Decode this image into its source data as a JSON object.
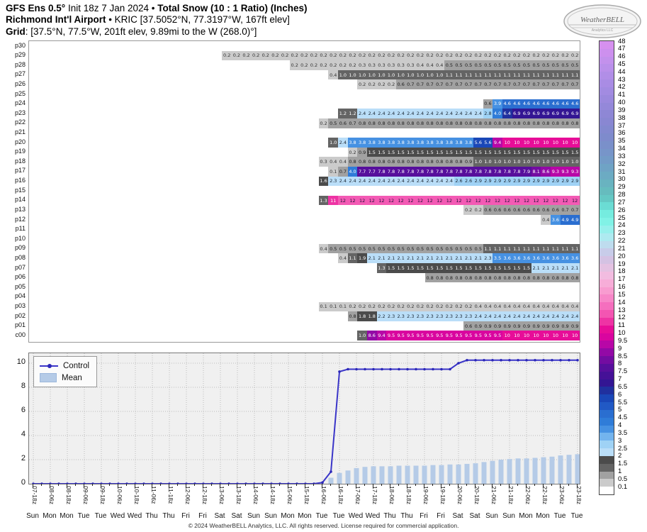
{
  "header": {
    "l1a": "GFS Ens 0.5° ",
    "l1b": "Init 18z 7 Jan 2024 • ",
    "l1c": "Total Snow (10 : 1 Ratio) (Inches)",
    "l2a": "Richmond Int'l Airport",
    "l2b": " • KRIC [37.5052°N, 77.3197°W, 167ft elev]",
    "l3a": "Grid",
    "l3b": ": [37.5°N, 77.5°W, 201ft elev, 9.89mi to the W (268.0)°]"
  },
  "logo": {
    "name": "WeatherBELL",
    "sub": "Analytics LLC"
  },
  "footer": "© 2024 WeatherBELL Analytics, LLC. All rights reserved. License required for commercial application.",
  "colors": {
    "control_line": "#3a35c8",
    "control_dot": "#2c28b8",
    "mean_bar": "#b5cbe7",
    "chart_bg": "#f0f0f0",
    "grid_dots": "#bbbbbb"
  },
  "cell_colormap": [
    {
      "max": 0.5,
      "bg": "#cbcbcb",
      "fg": "#333333"
    },
    {
      "max": 1,
      "bg": "#a1a1a1",
      "fg": "#1c1c1c"
    },
    {
      "max": 1.5,
      "bg": "#646464",
      "fg": "#ffffff"
    },
    {
      "max": 2,
      "bg": "#4b4b4b",
      "fg": "#ffffff"
    },
    {
      "max": 2.5,
      "bg": "#badef8",
      "fg": "#1c2733"
    },
    {
      "max": 3,
      "bg": "#9fd2f5",
      "fg": "#1c2733"
    },
    {
      "max": 3.5,
      "bg": "#73b4ee",
      "fg": "#101622"
    },
    {
      "max": 4,
      "bg": "#4691e2",
      "fg": "#ffffff"
    },
    {
      "max": 4.5,
      "bg": "#2f7cd8",
      "fg": "#ffffff"
    },
    {
      "max": 5,
      "bg": "#2a6ed0",
      "fg": "#ffffff"
    },
    {
      "max": 5.5,
      "bg": "#2159c5",
      "fg": "#ffffff"
    },
    {
      "max": 6,
      "bg": "#1a47b7",
      "fg": "#ffffff"
    },
    {
      "max": 6.5,
      "bg": "#20309e",
      "fg": "#ffffff"
    },
    {
      "max": 7,
      "bg": "#331593",
      "fg": "#ffffff"
    },
    {
      "max": 7.5,
      "bg": "#451197",
      "fg": "#ffffff"
    },
    {
      "max": 8,
      "bg": "#570f9c",
      "fg": "#ffffff"
    },
    {
      "max": 8.5,
      "bg": "#730ca1",
      "fg": "#ffffff"
    },
    {
      "max": 9,
      "bg": "#9309a6",
      "fg": "#ffffff"
    },
    {
      "max": 9.5,
      "bg": "#b807a7",
      "fg": "#ffffff"
    },
    {
      "max": 10,
      "bg": "#d9059f",
      "fg": "#ffffff"
    },
    {
      "max": 11,
      "bg": "#e70d98",
      "fg": "#ffffff"
    },
    {
      "max": 12,
      "bg": "#ee33a4",
      "fg": "#ffffff"
    },
    {
      "max": 13,
      "bg": "#f35ab4",
      "fg": "#20123a"
    }
  ],
  "colorbar": {
    "labels": [
      "48",
      "47",
      "46",
      "45",
      "44",
      "43",
      "42",
      "41",
      "40",
      "39",
      "38",
      "37",
      "36",
      "35",
      "34",
      "33",
      "32",
      "31",
      "30",
      "29",
      "28",
      "27",
      "26",
      "25",
      "24",
      "23",
      "22",
      "21",
      "20",
      "19",
      "18",
      "17",
      "16",
      "15",
      "14",
      "13",
      "12",
      "11",
      "10",
      "9.5",
      "9",
      "8.5",
      "8",
      "7.5",
      "7",
      "6.5",
      "6",
      "5.5",
      "5",
      "4.5",
      "4",
      "3.5",
      "3",
      "2.5",
      "2",
      "1.5",
      "1",
      "0.5",
      "0.1"
    ],
    "colors": [
      "#d690ef",
      "#cd90ee",
      "#c391ec",
      "#ba90ea",
      "#b18ee7",
      "#a98ce4",
      "#a28be1",
      "#9b89dd",
      "#9488d9",
      "#8e87d5",
      "#8987d2",
      "#8389cf",
      "#7e8bcc",
      "#7a90ca",
      "#7795c9",
      "#739bc7",
      "#6fa3c5",
      "#6cabc3",
      "#69b3c0",
      "#66bcbe",
      "#65c8c4",
      "#6bdcd4",
      "#75ecdf",
      "#81f2e6",
      "#97f0ec",
      "#aeeaf0",
      "#bedcee",
      "#c8cce9",
      "#d4c2e3",
      "#e4c2e2",
      "#f2bce0",
      "#f7add8",
      "#f89cd0",
      "#f787c8",
      "#f56fbe",
      "#f355b2",
      "#ee33a4",
      "#e70d98",
      "#d9059f",
      "#b807a7",
      "#9309a6",
      "#730ca1",
      "#570f9c",
      "#451197",
      "#331593",
      "#20309e",
      "#1a47b7",
      "#2159c5",
      "#2a6ed0",
      "#2f7cd8",
      "#4691e2",
      "#73b4ee",
      "#9fd2f5",
      "#badef8",
      "#4b4b4b",
      "#646464",
      "#a1a1a1",
      "#cbcbcb",
      "#ffffff"
    ]
  },
  "chart_data": [
    {
      "type": "heatmap",
      "title": "Ensemble member 6-hourly total snow grid (inches)",
      "n_cols": 40,
      "rows": [
        {
          "label": "p30",
          "start": 0,
          "runs": []
        },
        {
          "label": "p29",
          "start": 3,
          "runs": [
            [
              0.2,
              37
            ]
          ]
        },
        {
          "label": "p28",
          "start": 10,
          "runs": [
            [
              0.2,
              7
            ],
            [
              0.3,
              6
            ],
            [
              0.4,
              3
            ],
            [
              0.5,
              14
            ]
          ]
        },
        {
          "label": "p27",
          "start": 14,
          "runs": [
            [
              0.4,
              1
            ],
            [
              1.0,
              11
            ],
            [
              1.1,
              14
            ]
          ]
        },
        {
          "label": "p26",
          "start": 17,
          "runs": [
            [
              0.2,
              4
            ],
            [
              0.6,
              1
            ],
            [
              0.7,
              18
            ]
          ]
        },
        {
          "label": "p25",
          "start": 0,
          "runs": []
        },
        {
          "label": "p24",
          "start": 30,
          "runs": [
            [
              0.6,
              1
            ],
            [
              3.9,
              1
            ],
            [
              4.6,
              8
            ]
          ]
        },
        {
          "label": "p23",
          "start": 15,
          "runs": [
            [
              1.2,
              2
            ],
            [
              2.4,
              13
            ],
            [
              2.8,
              1
            ],
            [
              4.0,
              1
            ],
            [
              6.4,
              1
            ],
            [
              6.9,
              7
            ]
          ]
        },
        {
          "label": "p22",
          "start": 13,
          "runs": [
            [
              0.2,
              1
            ],
            [
              0.5,
              1
            ],
            [
              0.6,
              1
            ],
            [
              0.7,
              1
            ],
            [
              0.8,
              23
            ]
          ]
        },
        {
          "label": "p21",
          "start": 0,
          "runs": []
        },
        {
          "label": "p20",
          "start": 14,
          "runs": [
            [
              1.0,
              1
            ],
            [
              2.4,
              1
            ],
            [
              3.8,
              13
            ],
            [
              5.6,
              2
            ],
            [
              9.4,
              1
            ],
            [
              10,
              8
            ]
          ]
        },
        {
          "label": "p19",
          "start": 16,
          "runs": [
            [
              0.2,
              1
            ],
            [
              0.9,
              1
            ],
            [
              1.5,
              22
            ]
          ]
        },
        {
          "label": "p18",
          "start": 13,
          "runs": [
            [
              0.3,
              1
            ],
            [
              0.4,
              2
            ],
            [
              0.8,
              12
            ],
            [
              0.9,
              1
            ],
            [
              1.0,
              11
            ]
          ]
        },
        {
          "label": "p17",
          "start": 14,
          "runs": [
            [
              0.1,
              1
            ],
            [
              0.7,
              1
            ],
            [
              4.0,
              1
            ],
            [
              7.7,
              2
            ],
            [
              7.8,
              15
            ],
            [
              7.9,
              1
            ],
            [
              8.1,
              1
            ],
            [
              8.6,
              1
            ],
            [
              9.3,
              3
            ]
          ]
        },
        {
          "label": "p16",
          "start": 13,
          "runs": [
            [
              1.6,
              1
            ],
            [
              2.3,
              1
            ],
            [
              2.4,
              12
            ],
            [
              2.6,
              2
            ],
            [
              2.9,
              11
            ]
          ]
        },
        {
          "label": "p15",
          "start": 0,
          "runs": []
        },
        {
          "label": "p14",
          "start": 13,
          "runs": [
            [
              1.3,
              1
            ],
            [
              11,
              1
            ],
            [
              12,
              25
            ]
          ]
        },
        {
          "label": "p13",
          "start": 28,
          "runs": [
            [
              0.2,
              2
            ],
            [
              0.6,
              8
            ],
            [
              0.7,
              2
            ]
          ]
        },
        {
          "label": "p12",
          "start": 36,
          "runs": [
            [
              0.4,
              1
            ],
            [
              3.6,
              1
            ],
            [
              4.9,
              2
            ]
          ]
        },
        {
          "label": "p11",
          "start": 0,
          "runs": []
        },
        {
          "label": "p10",
          "start": 0,
          "runs": []
        },
        {
          "label": "p09",
          "start": 13,
          "runs": [
            [
              0.4,
              1
            ],
            [
              0.5,
              16
            ],
            [
              1.1,
              10
            ]
          ]
        },
        {
          "label": "p08",
          "start": 15,
          "runs": [
            [
              0.4,
              1
            ],
            [
              1.1,
              1
            ],
            [
              1.9,
              1
            ],
            [
              2.1,
              12
            ],
            [
              2.3,
              1
            ],
            [
              3.5,
              1
            ],
            [
              3.6,
              8
            ]
          ]
        },
        {
          "label": "p07",
          "start": 19,
          "runs": [
            [
              1.3,
              1
            ],
            [
              1.5,
              15
            ],
            [
              2.1,
              5
            ]
          ]
        },
        {
          "label": "p06",
          "start": 24,
          "runs": [
            [
              0.8,
              16
            ]
          ]
        },
        {
          "label": "p05",
          "start": 0,
          "runs": []
        },
        {
          "label": "p04",
          "start": 0,
          "runs": []
        },
        {
          "label": "p03",
          "start": 13,
          "runs": [
            [
              0.1,
              3
            ],
            [
              0.2,
              13
            ],
            [
              0.4,
              11
            ]
          ]
        },
        {
          "label": "p02",
          "start": 16,
          "runs": [
            [
              0.8,
              1
            ],
            [
              1.8,
              2
            ],
            [
              2.2,
              1
            ],
            [
              2.3,
              9
            ],
            [
              2.4,
              11
            ]
          ]
        },
        {
          "label": "p01",
          "start": 28,
          "runs": [
            [
              0.6,
              1
            ],
            [
              0.9,
              11
            ]
          ]
        },
        {
          "label": "c00",
          "start": 17,
          "runs": [
            [
              1.0,
              1
            ],
            [
              8.6,
              1
            ],
            [
              9.4,
              1
            ],
            [
              9.5,
              12
            ],
            [
              10,
              8
            ]
          ]
        }
      ]
    },
    {
      "type": "line",
      "legend": [
        "Control",
        "Mean"
      ],
      "ylim": [
        0,
        10.6
      ],
      "yticks": [
        0,
        2,
        4,
        6,
        8,
        10
      ],
      "x_labels": [
        "07-18z",
        "08-06z",
        "08-18z",
        "09-06z",
        "09-18z",
        "10-06z",
        "10-18z",
        "11-06z",
        "11-18z",
        "12-06z",
        "12-18z",
        "13-06z",
        "13-18z",
        "14-06z",
        "14-18z",
        "15-06z",
        "15-18z",
        "16-06z",
        "16-18z",
        "17-06z",
        "17-18z",
        "18-06z",
        "18-18z",
        "19-06z",
        "19-18z",
        "20-06z",
        "20-18z",
        "21-06z",
        "21-18z",
        "22-06z",
        "22-18z",
        "23-06z",
        "23-18z"
      ],
      "weekdays": [
        "Sun",
        "Mon",
        "Mon",
        "Tue",
        "Tue",
        "Wed",
        "Wed",
        "Thu",
        "Thu",
        "Fri",
        "Fri",
        "Sat",
        "Sat",
        "Sun",
        "Sun",
        "Mon",
        "Mon",
        "Tue",
        "Tue",
        "Wed",
        "Wed",
        "Thu",
        "Thu",
        "Fri",
        "Fri",
        "Sat",
        "Sat",
        "Sun",
        "Sun",
        "Mon",
        "Mon",
        "Tue",
        "Tue"
      ],
      "control": [
        0,
        0,
        0,
        0,
        0,
        0,
        0,
        0,
        0,
        0,
        0,
        0,
        0,
        0,
        0,
        0,
        0,
        0,
        0,
        0,
        0,
        0,
        0,
        0,
        0,
        0,
        0,
        0,
        0,
        0,
        0,
        0,
        0,
        0,
        0.1,
        1.0,
        9.3,
        9.5,
        9.5,
        9.5,
        9.5,
        9.5,
        9.5,
        9.5,
        9.5,
        9.5,
        9.5,
        9.5,
        9.5,
        9.5,
        10.0,
        10.25,
        10.25,
        10.25,
        10.25,
        10.25,
        10.25,
        10.25,
        10.25,
        10.25,
        10.25,
        10.25,
        10.25,
        10.25,
        10.25
      ],
      "mean": [
        0,
        0,
        0,
        0,
        0,
        0,
        0,
        0,
        0,
        0,
        0,
        0,
        0,
        0,
        0,
        0,
        0,
        0,
        0,
        0,
        0,
        0,
        0,
        0,
        0,
        0,
        0,
        0,
        0,
        0,
        0,
        0,
        0,
        0,
        0,
        0.5,
        0.9,
        1.1,
        1.3,
        1.4,
        1.45,
        1.45,
        1.45,
        1.5,
        1.5,
        1.5,
        1.5,
        1.55,
        1.55,
        1.6,
        1.6,
        1.65,
        1.7,
        1.8,
        1.9,
        2.0,
        2.05,
        2.1,
        2.1,
        2.15,
        2.2,
        2.25,
        2.35,
        2.4,
        2.45
      ]
    }
  ]
}
